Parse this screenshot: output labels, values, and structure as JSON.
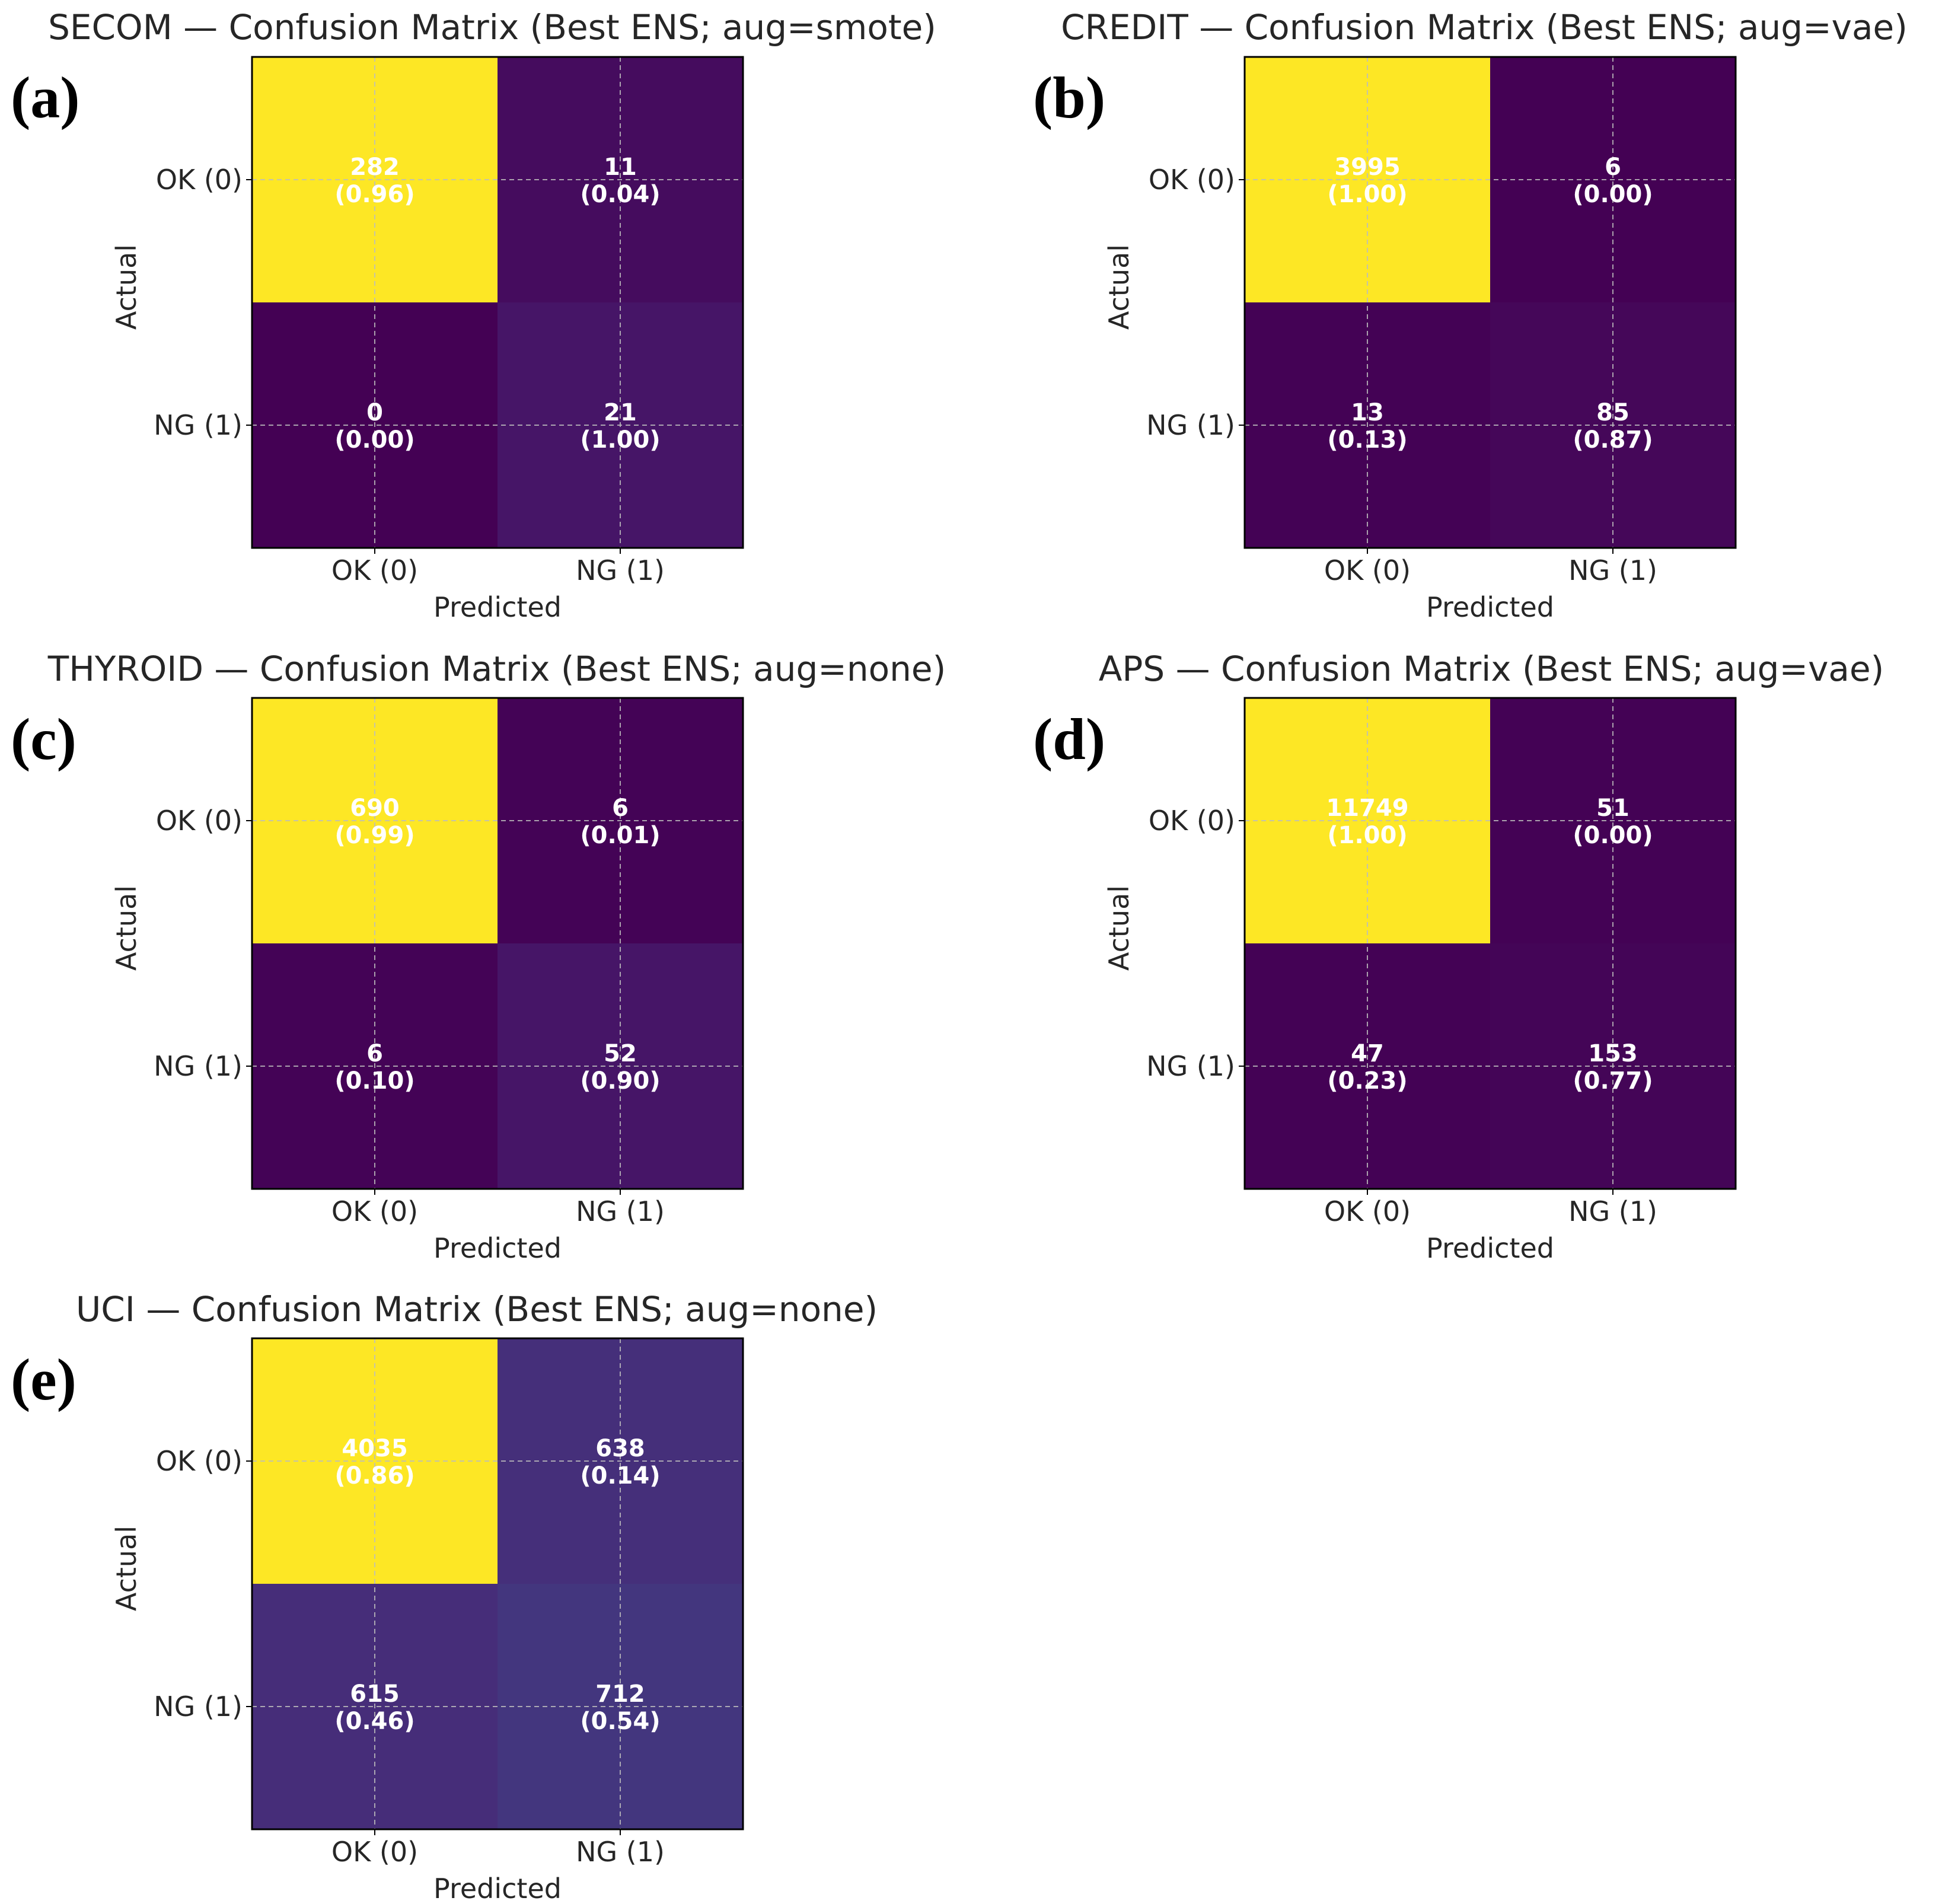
{
  "figure_labels": [
    "(a)",
    "(b)",
    "(c)",
    "(d)",
    "(e)"
  ],
  "colors": {
    "high": "#fde725",
    "low": "#440154",
    "text_on_cell": "#ffffff"
  },
  "chart_data": [
    {
      "type": "heatmap",
      "panel": "(a)",
      "title": "SECOM — Confusion Matrix (Best ENS; aug=smote)",
      "xlabel": "Predicted",
      "ylabel": "Actual",
      "x_tick_labels": [
        "OK (0)",
        "NG (1)"
      ],
      "y_tick_labels": [
        "OK (0)",
        "NG (1)"
      ],
      "counts": [
        [
          282,
          11
        ],
        [
          0,
          21
        ]
      ],
      "normalized_labels": [
        [
          "(0.96)",
          "(0.04)"
        ],
        [
          "(0.00)",
          "(1.00)"
        ]
      ],
      "normalized": [
        [
          0.96,
          0.04
        ],
        [
          0.0,
          1.0
        ]
      ]
    },
    {
      "type": "heatmap",
      "panel": "(b)",
      "title": "CREDIT — Confusion Matrix (Best ENS; aug=vae)",
      "xlabel": "Predicted",
      "ylabel": "Actual",
      "x_tick_labels": [
        "OK (0)",
        "NG (1)"
      ],
      "y_tick_labels": [
        "OK (0)",
        "NG (1)"
      ],
      "counts": [
        [
          3995,
          6
        ],
        [
          13,
          85
        ]
      ],
      "normalized_labels": [
        [
          "(1.00)",
          "(0.00)"
        ],
        [
          "(0.13)",
          "(0.87)"
        ]
      ],
      "normalized": [
        [
          1.0,
          0.0
        ],
        [
          0.13,
          0.87
        ]
      ]
    },
    {
      "type": "heatmap",
      "panel": "(c)",
      "title": "THYROID — Confusion Matrix (Best ENS; aug=none)",
      "xlabel": "Predicted",
      "ylabel": "Actual",
      "x_tick_labels": [
        "OK (0)",
        "NG (1)"
      ],
      "y_tick_labels": [
        "OK (0)",
        "NG (1)"
      ],
      "counts": [
        [
          690,
          6
        ],
        [
          6,
          52
        ]
      ],
      "normalized_labels": [
        [
          "(0.99)",
          "(0.01)"
        ],
        [
          "(0.10)",
          "(0.90)"
        ]
      ],
      "normalized": [
        [
          0.99,
          0.01
        ],
        [
          0.1,
          0.9
        ]
      ]
    },
    {
      "type": "heatmap",
      "panel": "(d)",
      "title": "APS — Confusion Matrix (Best ENS; aug=vae)",
      "xlabel": "Predicted",
      "ylabel": "Actual",
      "x_tick_labels": [
        "OK (0)",
        "NG (1)"
      ],
      "y_tick_labels": [
        "OK (0)",
        "NG (1)"
      ],
      "counts": [
        [
          11749,
          51
        ],
        [
          47,
          153
        ]
      ],
      "normalized_labels": [
        [
          "(1.00)",
          "(0.00)"
        ],
        [
          "(0.23)",
          "(0.77)"
        ]
      ],
      "normalized": [
        [
          1.0,
          0.0
        ],
        [
          0.23,
          0.77
        ]
      ]
    },
    {
      "type": "heatmap",
      "panel": "(e)",
      "title": "UCI — Confusion Matrix (Best ENS; aug=none)",
      "xlabel": "Predicted",
      "ylabel": "Actual",
      "x_tick_labels": [
        "OK (0)",
        "NG (1)"
      ],
      "y_tick_labels": [
        "OK (0)",
        "NG (1)"
      ],
      "counts": [
        [
          4035,
          638
        ],
        [
          615,
          712
        ]
      ],
      "normalized_labels": [
        [
          "(0.86)",
          "(0.14)"
        ],
        [
          "(0.46)",
          "(0.54)"
        ]
      ],
      "normalized": [
        [
          0.86,
          0.14
        ],
        [
          0.46,
          0.54
        ]
      ]
    }
  ]
}
